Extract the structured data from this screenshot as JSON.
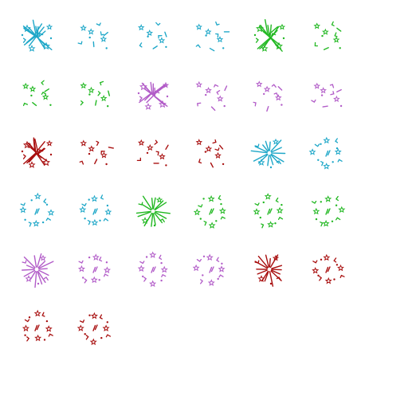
{
  "sprite_sheet": {
    "background": "#ffffff",
    "palette": {
      "cyan": "#1ea7c8",
      "green": "#22b822",
      "purple": "#b25cc8",
      "red": "#a80e0e"
    },
    "frames": [
      {
        "color": "cyan",
        "style": "burst-x"
      },
      {
        "color": "cyan",
        "style": "scatter"
      },
      {
        "color": "cyan",
        "style": "scatter"
      },
      {
        "color": "cyan",
        "style": "scatter"
      },
      {
        "color": "green",
        "style": "burst-x"
      },
      {
        "color": "green",
        "style": "scatter"
      },
      {
        "color": "green",
        "style": "scatter"
      },
      {
        "color": "green",
        "style": "scatter"
      },
      {
        "color": "purple",
        "style": "burst-x"
      },
      {
        "color": "purple",
        "style": "scatter"
      },
      {
        "color": "purple",
        "style": "scatter"
      },
      {
        "color": "purple",
        "style": "scatter"
      },
      {
        "color": "red",
        "style": "burst-x"
      },
      {
        "color": "red",
        "style": "scatter"
      },
      {
        "color": "red",
        "style": "scatter"
      },
      {
        "color": "red",
        "style": "scatter"
      },
      {
        "color": "cyan",
        "style": "burst-radial"
      },
      {
        "color": "cyan",
        "style": "ring"
      },
      {
        "color": "cyan",
        "style": "ring"
      },
      {
        "color": "cyan",
        "style": "ring"
      },
      {
        "color": "green",
        "style": "burst-radial"
      },
      {
        "color": "green",
        "style": "ring"
      },
      {
        "color": "green",
        "style": "ring"
      },
      {
        "color": "green",
        "style": "ring"
      },
      {
        "color": "purple",
        "style": "burst-radial"
      },
      {
        "color": "purple",
        "style": "ring"
      },
      {
        "color": "purple",
        "style": "ring"
      },
      {
        "color": "purple",
        "style": "ring"
      },
      {
        "color": "red",
        "style": "burst-radial"
      },
      {
        "color": "red",
        "style": "ring"
      },
      {
        "color": "red",
        "style": "ring"
      },
      {
        "color": "red",
        "style": "ring"
      }
    ]
  }
}
